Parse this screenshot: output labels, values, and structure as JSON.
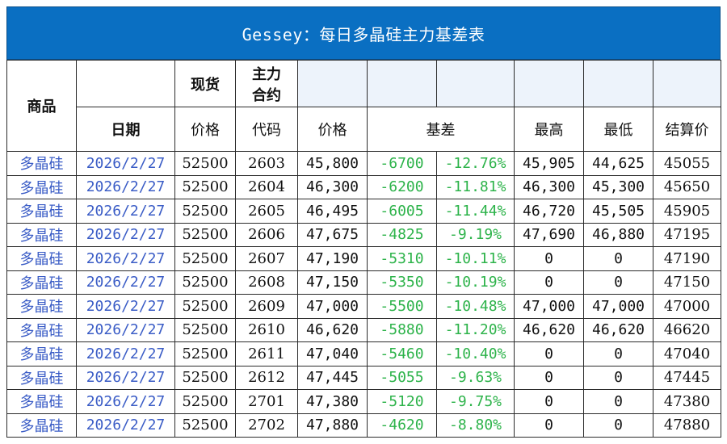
{
  "title": "Gessey：每日多晶硅主力基差表",
  "header": {
    "product": "商品",
    "spot": "现货",
    "main_contract": [
      "主力",
      "合约"
    ],
    "date": "日期",
    "price": "价格",
    "code": "代码",
    "price2": "价格",
    "basis": "基差",
    "high": "最高",
    "low": "最低",
    "settle": "结算价"
  },
  "rows": [
    {
      "product": "多晶硅",
      "date": "2026/2/27",
      "spot": "52500",
      "code": "2603",
      "price": "45,800",
      "basis": "-6700",
      "basis_pct": "-12.76%",
      "high": "45,905",
      "low": "44,625",
      "settle": "45055"
    },
    {
      "product": "多晶硅",
      "date": "2026/2/27",
      "spot": "52500",
      "code": "2604",
      "price": "46,300",
      "basis": "-6200",
      "basis_pct": "-11.81%",
      "high": "46,300",
      "low": "45,300",
      "settle": "45650"
    },
    {
      "product": "多晶硅",
      "date": "2026/2/27",
      "spot": "52500",
      "code": "2605",
      "price": "46,495",
      "basis": "-6005",
      "basis_pct": "-11.44%",
      "high": "46,720",
      "low": "45,505",
      "settle": "45905"
    },
    {
      "product": "多晶硅",
      "date": "2026/2/27",
      "spot": "52500",
      "code": "2606",
      "price": "47,675",
      "basis": "-4825",
      "basis_pct": "-9.19%",
      "high": "47,690",
      "low": "46,880",
      "settle": "47195"
    },
    {
      "product": "多晶硅",
      "date": "2026/2/27",
      "spot": "52500",
      "code": "2607",
      "price": "47,190",
      "basis": "-5310",
      "basis_pct": "-10.11%",
      "high": "0",
      "low": "0",
      "settle": "47190"
    },
    {
      "product": "多晶硅",
      "date": "2026/2/27",
      "spot": "52500",
      "code": "2608",
      "price": "47,150",
      "basis": "-5350",
      "basis_pct": "-10.19%",
      "high": "0",
      "low": "0",
      "settle": "47150"
    },
    {
      "product": "多晶硅",
      "date": "2026/2/27",
      "spot": "52500",
      "code": "2609",
      "price": "47,000",
      "basis": "-5500",
      "basis_pct": "-10.48%",
      "high": "47,000",
      "low": "47,000",
      "settle": "47000"
    },
    {
      "product": "多晶硅",
      "date": "2026/2/27",
      "spot": "52500",
      "code": "2610",
      "price": "46,620",
      "basis": "-5880",
      "basis_pct": "-11.20%",
      "high": "46,620",
      "low": "46,620",
      "settle": "46620"
    },
    {
      "product": "多晶硅",
      "date": "2026/2/27",
      "spot": "52500",
      "code": "2611",
      "price": "47,040",
      "basis": "-5460",
      "basis_pct": "-10.40%",
      "high": "0",
      "low": "0",
      "settle": "47040"
    },
    {
      "product": "多晶硅",
      "date": "2026/2/27",
      "spot": "52500",
      "code": "2612",
      "price": "47,445",
      "basis": "-5055",
      "basis_pct": "-9.63%",
      "high": "0",
      "low": "0",
      "settle": "47445"
    },
    {
      "product": "多晶硅",
      "date": "2026/2/27",
      "spot": "52500",
      "code": "2701",
      "price": "47,380",
      "basis": "-5120",
      "basis_pct": "-9.75%",
      "high": "0",
      "low": "0",
      "settle": "47380"
    },
    {
      "product": "多晶硅",
      "date": "2026/2/27",
      "spot": "52500",
      "code": "2702",
      "price": "47,880",
      "basis": "-4620",
      "basis_pct": "-8.80%",
      "high": "0",
      "low": "0",
      "settle": "47880"
    }
  ],
  "colors": {
    "title_bg": "#0a6fc2",
    "link_blue": "#3a5cc6",
    "basis_green": "#2db34a",
    "shade": "#edf3fb"
  }
}
